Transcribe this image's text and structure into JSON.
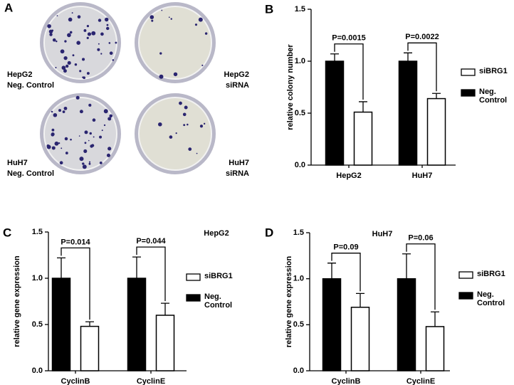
{
  "photo_panel": {
    "panel_label": "A",
    "plates": [
      {
        "lines": [
          "HepG2",
          "Neg. Control"
        ]
      },
      {
        "lines": [
          "HepG2",
          "siRNA"
        ]
      },
      {
        "lines": [
          "HuH7",
          "Neg. Control"
        ]
      },
      {
        "lines": [
          "HuH7",
          "siRNA"
        ]
      }
    ]
  },
  "chart_data": [
    {
      "type": "bar",
      "panel_label": "B",
      "y_label": "relative colony number",
      "categories": [
        "HepG2",
        "HuH7"
      ],
      "series": [
        {
          "name": "Neg. Control",
          "color": "#000000",
          "values": [
            1.0,
            1.0
          ],
          "errors": [
            0.07,
            0.08
          ]
        },
        {
          "name": "siBRG1",
          "color": "#ffffff",
          "values": [
            0.51,
            0.64
          ],
          "errors": [
            0.1,
            0.05
          ]
        }
      ],
      "p_labels": [
        "P=0.0015",
        "P=0.0022"
      ],
      "ylim": [
        0,
        1.5
      ],
      "yticks": [
        {
          "value": 0,
          "label": "0.0"
        },
        0.5,
        {
          "value": 1,
          "label": "1.0"
        },
        1.5
      ]
    },
    {
      "type": "bar",
      "panel_label": "C",
      "title": "HepG2",
      "y_label": "relative gene expression",
      "categories": [
        "CyclinB",
        "CyclinE"
      ],
      "series": [
        {
          "name": "Neg. Control",
          "color": "#000000",
          "values": [
            1.0,
            1.0
          ],
          "errors": [
            0.22,
            0.23
          ]
        },
        {
          "name": "siBRG1",
          "color": "#ffffff",
          "values": [
            0.48,
            0.6
          ],
          "errors": [
            0.05,
            0.13
          ]
        }
      ],
      "p_labels": [
        "P=0.014",
        "P=0.044"
      ],
      "ylim": [
        0,
        1.5
      ],
      "yticks": [
        {
          "value": 0,
          "label": "0.0"
        },
        0.5,
        {
          "value": 1,
          "label": "1.0"
        },
        1.5
      ]
    },
    {
      "type": "bar",
      "panel_label": "D",
      "title": "HuH7",
      "y_label": "relative gene expression",
      "categories": [
        "CyclinB",
        "CyclinE"
      ],
      "series": [
        {
          "name": "Neg. Control",
          "color": "#000000",
          "values": [
            1.0,
            1.0
          ],
          "errors": [
            0.17,
            0.27
          ]
        },
        {
          "name": "siBRG1",
          "color": "#ffffff",
          "values": [
            0.69,
            0.48
          ],
          "errors": [
            0.15,
            0.16
          ]
        }
      ],
      "p_labels": [
        "P=0.09",
        "P=0.06"
      ],
      "ylim": [
        0,
        1.5
      ],
      "yticks": [
        {
          "value": 0,
          "label": "0.0"
        },
        0.5,
        {
          "value": 1,
          "label": "1.0"
        },
        1.5
      ]
    }
  ]
}
